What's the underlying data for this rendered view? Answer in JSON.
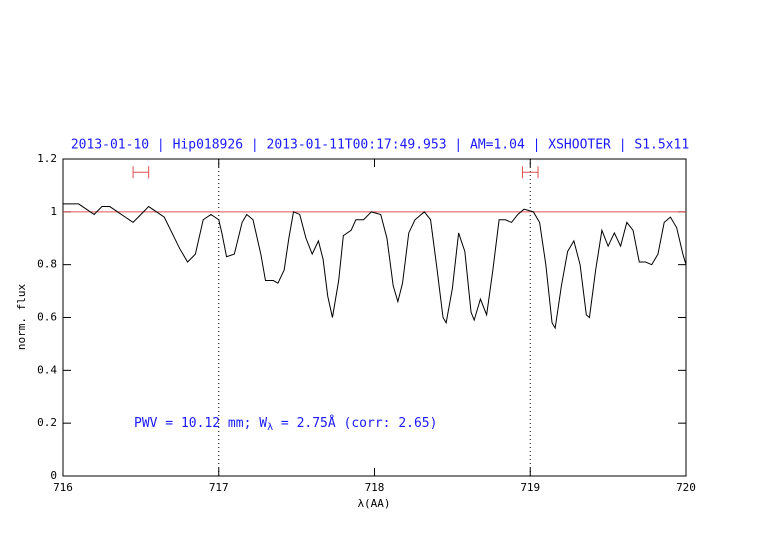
{
  "chart_data": {
    "type": "line",
    "title": "2013-01-10 | Hip018926 | 2013-01-11T00:17:49.953 | AM=1.04 | XSHOOTER | S1.5x11",
    "xlabel": "λ(AA)",
    "ylabel": "norm. flux",
    "annotation": [
      "PWV = 10.12 mm; W",
      "λ",
      " = 2.75Å  (corr: 2.65)"
    ],
    "xlim": [
      716,
      720
    ],
    "ylim": [
      0,
      1.2
    ],
    "xticks": [
      716,
      717,
      718,
      719,
      720
    ],
    "yticks": [
      0,
      0.2,
      0.4,
      0.6,
      0.8,
      1,
      1.2
    ],
    "reference_line": 1,
    "reference_color": "#e05050",
    "vlines": [
      717,
      719
    ],
    "intervals": [
      {
        "x": [
          716.45,
          716.55
        ],
        "y": 1.15
      },
      {
        "x": [
          718.95,
          719.05
        ],
        "y": 1.15
      }
    ],
    "x": [
      716.0,
      716.1,
      716.15,
      716.2,
      716.25,
      716.3,
      716.35,
      716.4,
      716.45,
      716.5,
      716.55,
      716.6,
      716.65,
      716.7,
      716.75,
      716.8,
      716.85,
      716.9,
      716.95,
      717.0,
      717.02,
      717.05,
      717.1,
      717.15,
      717.18,
      717.22,
      717.27,
      717.3,
      717.35,
      717.38,
      717.42,
      717.45,
      717.48,
      717.52,
      717.56,
      717.6,
      717.64,
      717.67,
      717.7,
      717.73,
      717.77,
      717.8,
      717.85,
      717.88,
      717.93,
      717.98,
      718.04,
      718.08,
      718.12,
      718.15,
      718.18,
      718.22,
      718.26,
      718.32,
      718.36,
      718.4,
      718.44,
      718.46,
      718.5,
      718.54,
      718.58,
      718.62,
      718.64,
      718.68,
      718.72,
      718.76,
      718.8,
      718.84,
      718.88,
      718.92,
      718.96,
      719.02,
      719.06,
      719.1,
      719.14,
      719.16,
      719.2,
      719.24,
      719.28,
      719.32,
      719.36,
      719.38,
      719.42,
      719.46,
      719.5,
      719.54,
      719.58,
      719.62,
      719.66,
      719.7,
      719.74,
      719.78,
      719.82,
      719.86,
      719.9,
      719.94,
      719.98,
      720.0
    ],
    "series": [
      {
        "color": "#000000",
        "values": [
          1.03,
          1.03,
          1.01,
          0.99,
          1.02,
          1.02,
          1.0,
          0.98,
          0.96,
          0.99,
          1.02,
          1.0,
          0.98,
          0.92,
          0.86,
          0.81,
          0.84,
          0.97,
          0.99,
          0.97,
          0.92,
          0.83,
          0.84,
          0.96,
          0.99,
          0.97,
          0.84,
          0.74,
          0.74,
          0.73,
          0.78,
          0.9,
          1.0,
          0.99,
          0.9,
          0.84,
          0.89,
          0.82,
          0.68,
          0.6,
          0.74,
          0.91,
          0.93,
          0.97,
          0.97,
          1.0,
          0.99,
          0.9,
          0.72,
          0.66,
          0.73,
          0.92,
          0.97,
          1.0,
          0.97,
          0.79,
          0.6,
          0.58,
          0.71,
          0.92,
          0.85,
          0.62,
          0.59,
          0.67,
          0.61,
          0.78,
          0.97,
          0.97,
          0.96,
          0.99,
          1.01,
          1.0,
          0.96,
          0.8,
          0.58,
          0.56,
          0.72,
          0.85,
          0.89,
          0.8,
          0.61,
          0.6,
          0.78,
          0.93,
          0.87,
          0.92,
          0.87,
          0.96,
          0.93,
          0.81,
          0.81,
          0.8,
          0.84,
          0.96,
          0.98,
          0.94,
          0.84,
          0.8
        ]
      }
    ]
  }
}
